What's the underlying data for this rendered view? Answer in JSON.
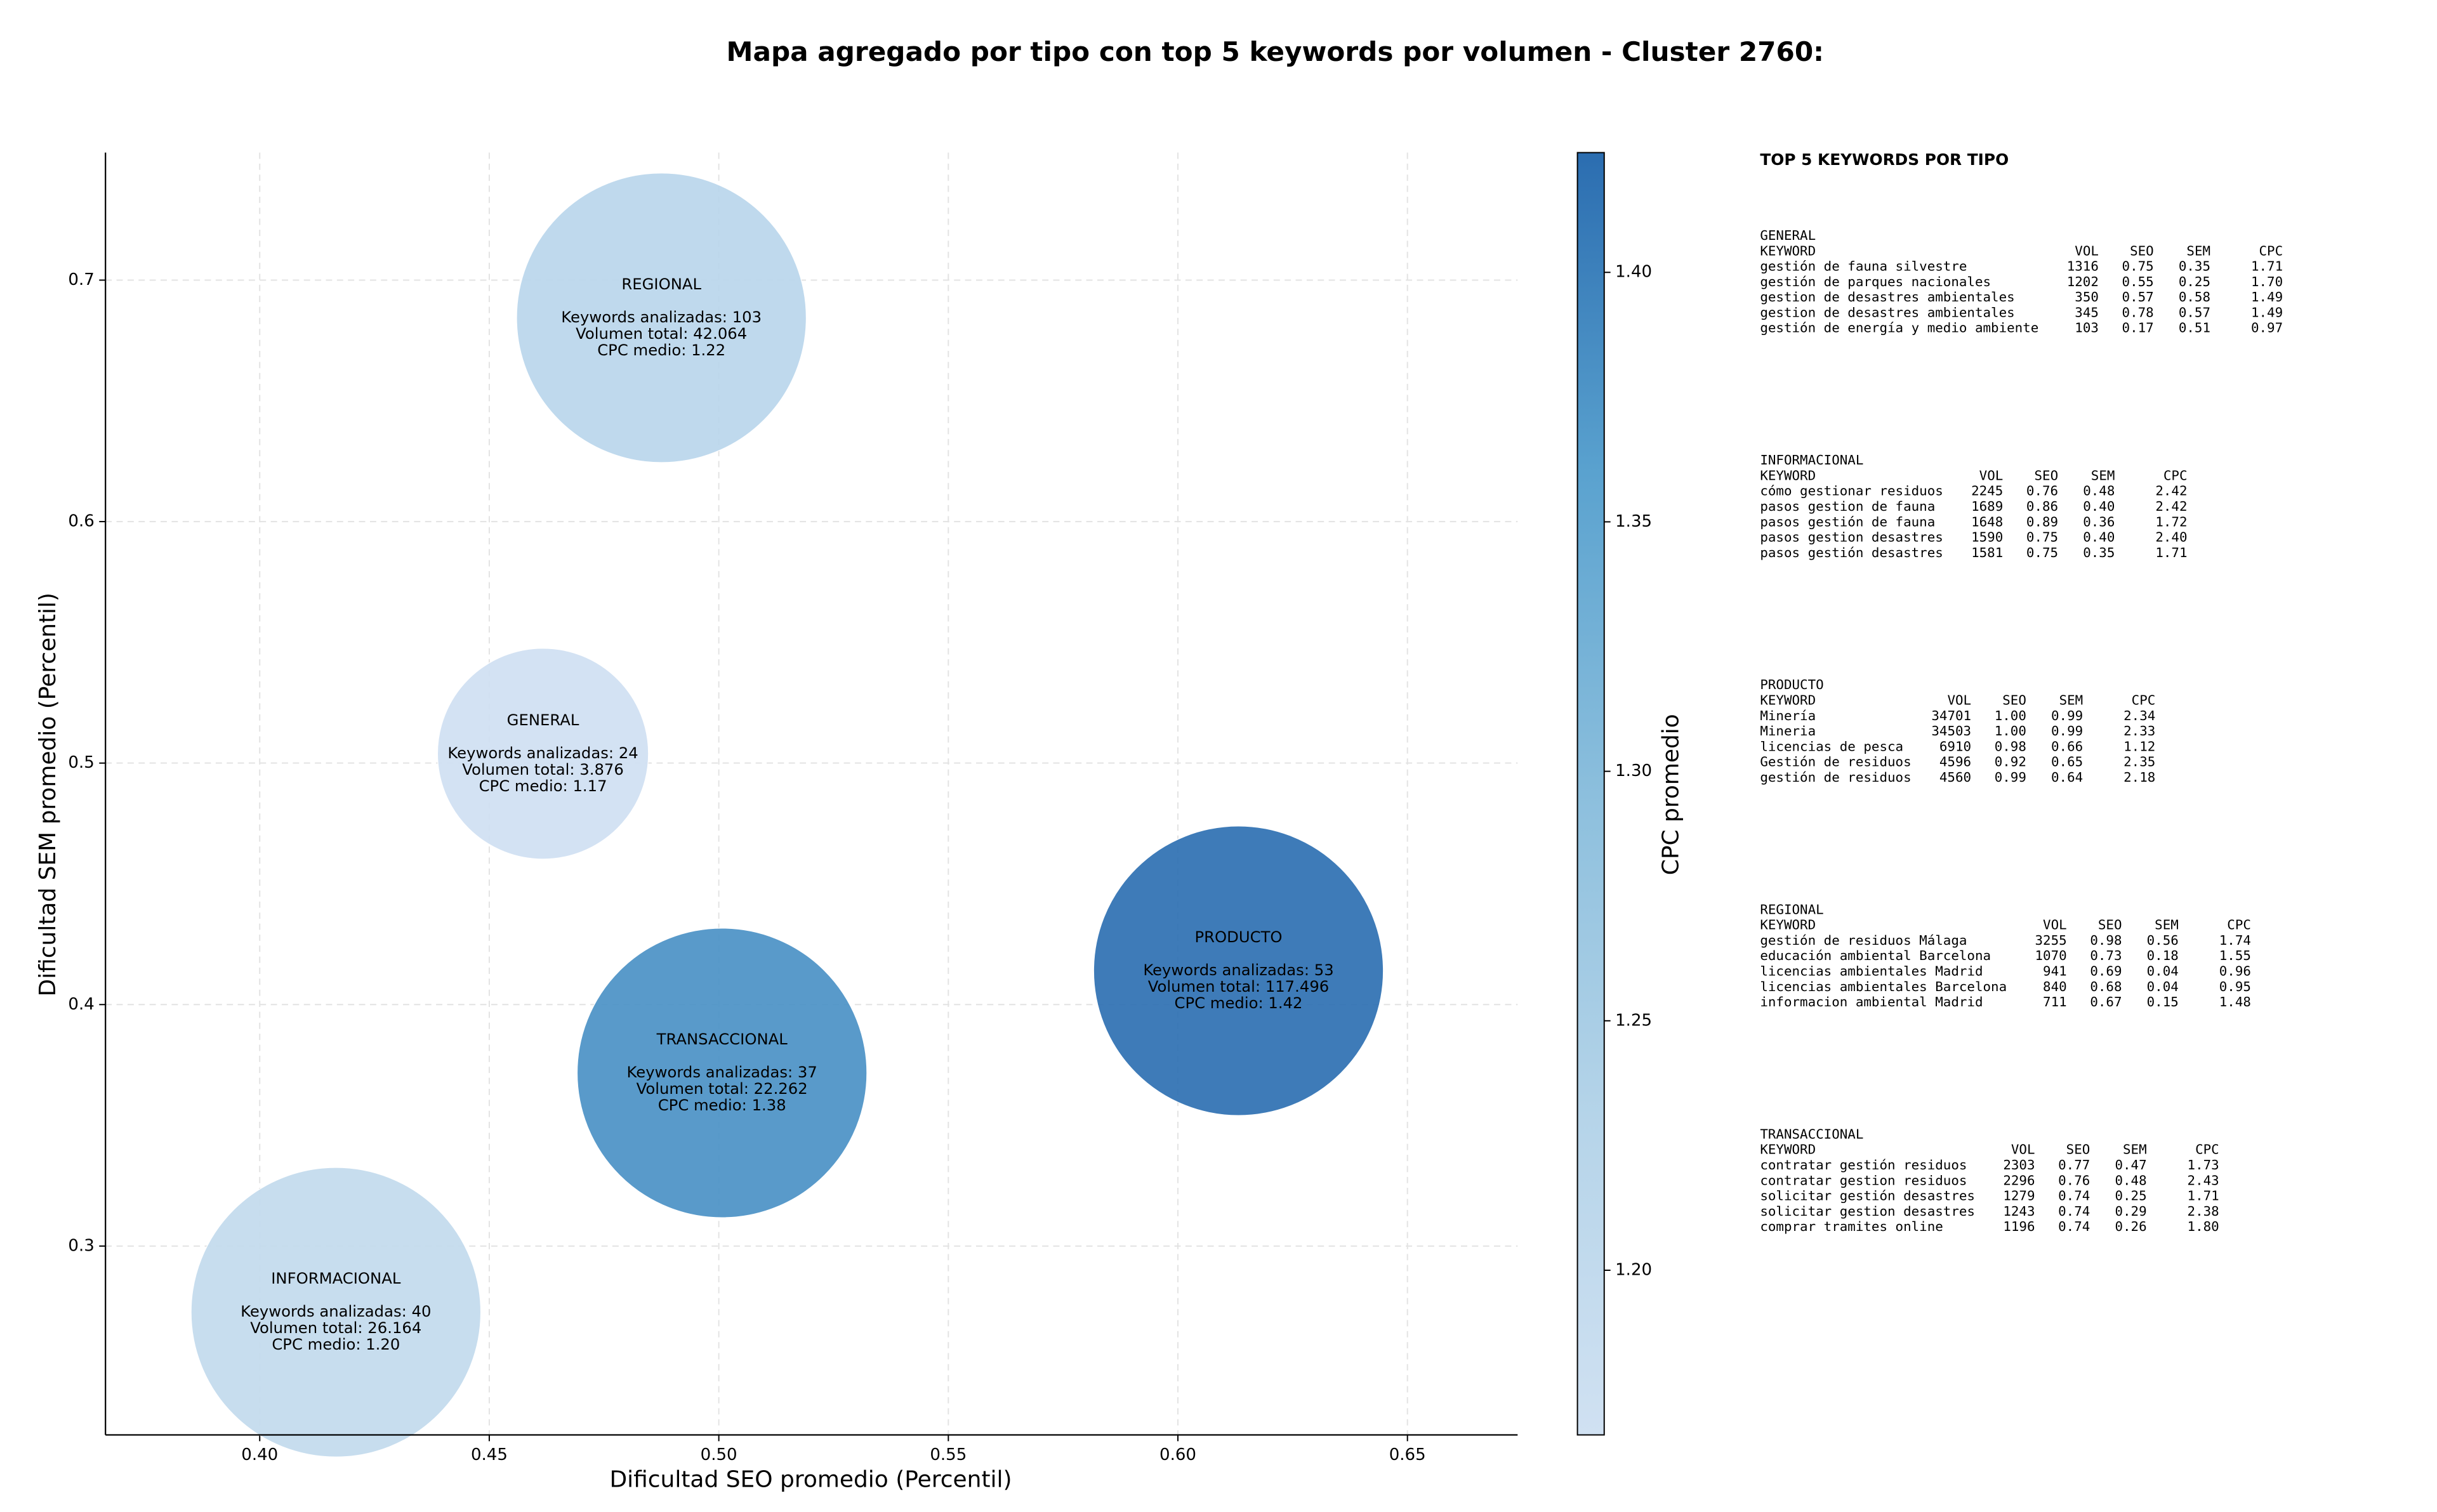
{
  "chart_data": {
    "type": "bubble",
    "title": "Mapa agregado por tipo con top 5 keywords por volumen - Cluster 2760:",
    "xlabel": "Dificultad SEO promedio (Percentil)",
    "ylabel": "Dificultad SEM promedio (Percentil)",
    "colorbar_label": "CPC promedio",
    "xlim": [
      0.3664,
      0.674
    ],
    "ylim": [
      0.2218,
      0.7528
    ],
    "xticks": [
      {
        "value": 0.4,
        "label": "0.40"
      },
      0.45,
      {
        "value": 0.5,
        "label": "0.50"
      },
      0.55,
      {
        "value": 0.6,
        "label": "0.60"
      },
      0.65
    ],
    "yticks": [
      0.3,
      0.4,
      0.5,
      0.6,
      0.7
    ],
    "colorbar_lim": [
      1.167,
      1.424
    ],
    "colorbar_ticks": [
      {
        "value": 1.2,
        "label": "1.20"
      },
      1.25,
      {
        "value": 1.3,
        "label": "1.30"
      },
      1.35,
      {
        "value": 1.4,
        "label": "1.40"
      }
    ],
    "colormap": [
      "#d0e1f2",
      "#b5d4e9",
      "#8cbfdd",
      "#5aa2cf",
      "#2b6db0"
    ],
    "grid": true,
    "x": [
      0.4617,
      0.4166,
      0.6132,
      0.4875,
      0.5007
    ],
    "y": [
      0.5039,
      0.2726,
      0.414,
      0.6844,
      0.3717
    ],
    "sizes": [
      3876,
      26164,
      117496,
      42064,
      22262
    ],
    "color_values": [
      1.17,
      1.2,
      1.42,
      1.22,
      1.38
    ],
    "annotations": [
      [
        "GENERAL",
        "Keywords analizadas: 24",
        "Volumen total: 3.876",
        "CPC medio: 1.17"
      ],
      [
        "INFORMACIONAL",
        "Keywords analizadas: 40",
        "Volumen total: 26.164",
        "CPC medio: 1.20"
      ],
      [
        "PRODUCTO",
        "Keywords analizadas: 53",
        "Volumen total: 117.496",
        "CPC medio: 1.42"
      ],
      [
        "REGIONAL",
        "Keywords analizadas: 103",
        "Volumen total: 42.064",
        "CPC medio: 1.22"
      ],
      [
        "TRANSACCIONAL",
        "Keywords analizadas: 37",
        "Volumen total: 22.262",
        "CPC medio: 1.38"
      ]
    ],
    "panel": {
      "title": "TOP 5 KEYWORDS POR TIPO",
      "groups": [
        {
          "name": "GENERAL",
          "header": [
            "KEYWORD",
            "VOL",
            "SEO",
            "SEM",
            "CPC"
          ],
          "rows": [
            [
              "gestión de fauna silvestre",
              "1316",
              "0.75",
              "0.35",
              "1.71"
            ],
            [
              "gestión de parques nacionales",
              "1202",
              "0.55",
              "0.25",
              "1.70"
            ],
            [
              "gestion de desastres ambientales",
              "350",
              "0.57",
              "0.58",
              "1.49"
            ],
            [
              "gestion de desastres ambientales",
              "345",
              "0.78",
              "0.57",
              "1.49"
            ],
            [
              "gestión de energía y medio ambiente",
              "103",
              "0.17",
              "0.51",
              "0.97"
            ]
          ]
        },
        {
          "name": "INFORMACIONAL",
          "header": [
            "KEYWORD",
            "VOL",
            "SEO",
            "SEM",
            "CPC"
          ],
          "rows": [
            [
              "cómo gestionar residuos",
              "2245",
              "0.76",
              "0.48",
              "2.42"
            ],
            [
              "pasos gestion de fauna",
              "1689",
              "0.86",
              "0.40",
              "2.42"
            ],
            [
              "pasos gestión de fauna",
              "1648",
              "0.89",
              "0.36",
              "1.72"
            ],
            [
              "pasos gestion desastres",
              "1590",
              "0.75",
              "0.40",
              "2.40"
            ],
            [
              "pasos gestión desastres",
              "1581",
              "0.75",
              "0.35",
              "1.71"
            ]
          ]
        },
        {
          "name": "PRODUCTO",
          "header": [
            "KEYWORD",
            "VOL",
            "SEO",
            "SEM",
            "CPC"
          ],
          "rows": [
            [
              "Minería",
              "34701",
              "1.00",
              "0.99",
              "2.34"
            ],
            [
              "Mineria",
              "34503",
              "1.00",
              "0.99",
              "2.33"
            ],
            [
              "licencias de pesca",
              "6910",
              "0.98",
              "0.66",
              "1.12"
            ],
            [
              "Gestión de residuos",
              "4596",
              "0.92",
              "0.65",
              "2.35"
            ],
            [
              "gestión de residuos",
              "4560",
              "0.99",
              "0.64",
              "2.18"
            ]
          ]
        },
        {
          "name": "REGIONAL",
          "header": [
            "KEYWORD",
            "VOL",
            "SEO",
            "SEM",
            "CPC"
          ],
          "rows": [
            [
              "gestión de residuos Málaga",
              "3255",
              "0.98",
              "0.56",
              "1.74"
            ],
            [
              "educación ambiental Barcelona",
              "1070",
              "0.73",
              "0.18",
              "1.55"
            ],
            [
              "licencias ambientales Madrid",
              "941",
              "0.69",
              "0.04",
              "0.96"
            ],
            [
              "licencias ambientales Barcelona",
              "840",
              "0.68",
              "0.04",
              "0.95"
            ],
            [
              "informacion ambiental Madrid",
              "711",
              "0.67",
              "0.15",
              "1.48"
            ]
          ]
        },
        {
          "name": "TRANSACCIONAL",
          "header": [
            "KEYWORD",
            "VOL",
            "SEO",
            "SEM",
            "CPC"
          ],
          "rows": [
            [
              "contratar gestión residuos",
              "2303",
              "0.77",
              "0.47",
              "1.73"
            ],
            [
              "contratar gestion residuos",
              "2296",
              "0.76",
              "0.48",
              "2.43"
            ],
            [
              "solicitar gestión desastres",
              "1279",
              "0.74",
              "0.25",
              "1.71"
            ],
            [
              "solicitar gestion desastres",
              "1243",
              "0.74",
              "0.29",
              "2.38"
            ],
            [
              "comprar tramites online",
              "1196",
              "0.74",
              "0.26",
              "1.80"
            ]
          ]
        }
      ]
    }
  }
}
